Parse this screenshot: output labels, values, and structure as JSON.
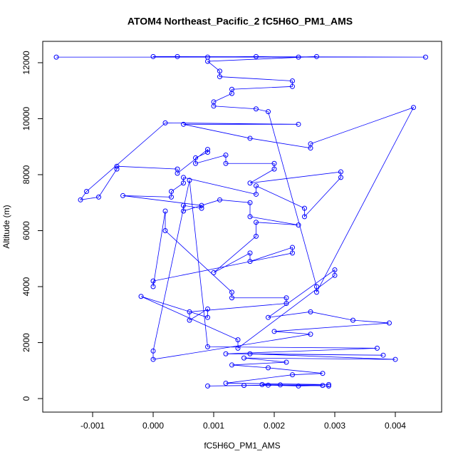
{
  "chart_data": {
    "type": "scatter",
    "title": "ATOM4 Northeast_Pacific_2 fC5H6O_PM1_AMS",
    "x_label": "fC5H6O_PM1_AMS",
    "y_label": "Altitude (m)",
    "color": "#0000ff",
    "connected": true,
    "xlim": [
      -0.001824,
      0.004765
    ],
    "ylim": [
      -483,
      12763
    ],
    "xticks": [
      -0.001,
      {
        "value": 0,
        "label": "0.000"
      },
      0.001,
      0.002,
      0.003,
      0.004
    ],
    "yticks": [
      0,
      2000,
      4000,
      6000,
      8000,
      10000,
      12000
    ],
    "x": [
      -0.0016,
      0.0045,
      0.0,
      0.0004,
      0.0009,
      0.0017,
      0.0024,
      0.0027,
      0.0009,
      0.0011,
      0.0011,
      0.0023,
      0.0023,
      0.0013,
      0.0013,
      0.001,
      0.001,
      0.0017,
      0.0019,
      0.0027,
      0.0027,
      0.0043,
      0.0026,
      0.0026,
      0.0016,
      0.0005,
      0.0024,
      0.0002,
      -0.0011,
      -0.0012,
      -0.0009,
      -0.0006,
      -0.0006,
      0.0004,
      0.0004,
      0.0009,
      0.0009,
      0.0007,
      0.0007,
      0.0012,
      0.0012,
      0.002,
      0.002,
      0.0016,
      0.0031,
      0.0031,
      0.0025,
      0.0025,
      0.0017,
      0.0017,
      0.0005,
      0.0005,
      0.0003,
      0.0003,
      -0.0005,
      0.0008,
      0.0008,
      0.0005,
      0.0005,
      0.0011,
      0.0016,
      0.0016,
      0.0024,
      0.0017,
      0.0017,
      0.001,
      0.0016,
      0.0016,
      0.0023,
      0.0023,
      0.0,
      0.0,
      0.0002,
      0.0002,
      0.0013,
      0.0013,
      0.0022,
      0.0022,
      0.0006,
      0.0006,
      0.0009,
      0.0009,
      -0.0002,
      0.0014,
      0.0014,
      0.003,
      0.003,
      0.0019,
      0.0026,
      0.0033,
      0.0039,
      0.002,
      0.0026,
      0.0,
      0.0,
      0.0006,
      0.0009,
      0.0037,
      0.0012,
      0.0038,
      0.0016,
      0.004,
      0.0015,
      0.0022,
      0.0013,
      0.0019,
      0.0028,
      0.0023,
      0.0012,
      0.0029,
      0.0009,
      0.0015,
      0.0019,
      0.0024,
      0.0028,
      0.0021,
      0.0018,
      0.0029
    ],
    "y": [
      12200,
      12200,
      12220,
      12220,
      12200,
      12220,
      12200,
      12220,
      12050,
      11700,
      11500,
      11350,
      11150,
      11050,
      10900,
      10600,
      10450,
      10350,
      10250,
      4000,
      3800,
      10400,
      9100,
      8950,
      9300,
      9800,
      9800,
      9850,
      7400,
      7100,
      7200,
      8200,
      8300,
      8200,
      8050,
      8900,
      8800,
      8600,
      8400,
      8700,
      8400,
      8400,
      8200,
      7700,
      8100,
      7900,
      6500,
      6800,
      7600,
      7300,
      7900,
      7700,
      7400,
      7200,
      7250,
      6900,
      6800,
      6900,
      6700,
      7100,
      7000,
      6500,
      6200,
      6300,
      5800,
      4500,
      5200,
      4900,
      5400,
      5200,
      4200,
      4000,
      6700,
      6000,
      3800,
      3600,
      3600,
      3400,
      3100,
      2800,
      3200,
      2900,
      3650,
      2100,
      1800,
      4400,
      4600,
      2900,
      3100,
      2800,
      2700,
      2400,
      2300,
      1400,
      1700,
      7800,
      1850,
      1800,
      1600,
      1550,
      1600,
      1400,
      1450,
      1300,
      1200,
      1100,
      900,
      850,
      550,
      500,
      450,
      470,
      480,
      450,
      470,
      490,
      500,
      450
    ]
  }
}
